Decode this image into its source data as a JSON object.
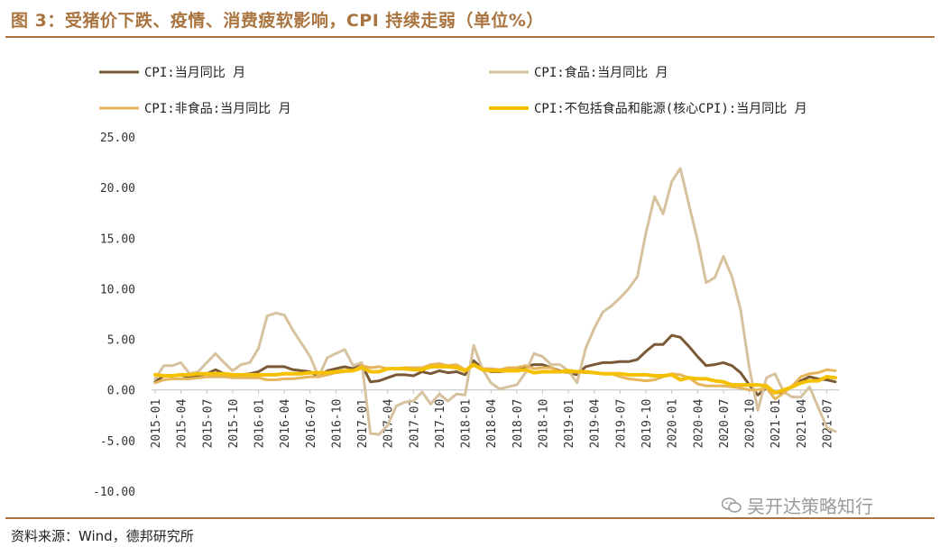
{
  "title": "图 3：受猪价下跌、疫情、消费疲软影响，CPI 持续走弱（单位%）",
  "source": "资料来源：Wind，德邦研究所",
  "watermark": {
    "text": "吴开达策略知行",
    "icon": "wechat-icon"
  },
  "colors": {
    "cpi": "#7a5a36",
    "food": "#d7c29e",
    "nonfood": "#e6b55a",
    "core": "#f5c000",
    "accent": "#a9743f"
  },
  "chart_data": {
    "type": "line",
    "title": "图 3：受猪价下跌、疫情、消费疲软影响，CPI 持续走弱（单位%）",
    "ylim": [
      -10,
      25
    ],
    "y_ticks": [
      "25.00",
      "20.00",
      "15.00",
      "10.00",
      "5.00",
      "0.00",
      "-5.00",
      "-10.00"
    ],
    "x_tick_labels": [
      "2015-01",
      "2015-04",
      "2015-07",
      "2015-10",
      "2016-01",
      "2016-04",
      "2016-07",
      "2016-10",
      "2017-01",
      "2017-04",
      "2017-07",
      "2017-10",
      "2018-01",
      "2018-04",
      "2018-07",
      "2018-10",
      "2019-01",
      "2019-04",
      "2019-07",
      "2019-10",
      "2020-01",
      "2020-04",
      "2020-07",
      "2020-10",
      "2021-01",
      "2021-04",
      "2021-07"
    ],
    "legend_position": "top",
    "grid": false,
    "series": [
      {
        "name": "CPI:当月同比 月",
        "color": "#7a5a36",
        "x": [
          "2015-01",
          "2015-02",
          "2015-03",
          "2015-04",
          "2015-05",
          "2015-06",
          "2015-07",
          "2015-08",
          "2015-09",
          "2015-10",
          "2015-11",
          "2015-12",
          "2016-01",
          "2016-02",
          "2016-03",
          "2016-04",
          "2016-05",
          "2016-06",
          "2016-07",
          "2016-08",
          "2016-09",
          "2016-10",
          "2016-11",
          "2016-12",
          "2017-01",
          "2017-02",
          "2017-03",
          "2017-04",
          "2017-05",
          "2017-06",
          "2017-07",
          "2017-08",
          "2017-09",
          "2017-10",
          "2017-11",
          "2017-12",
          "2018-01",
          "2018-02",
          "2018-03",
          "2018-04",
          "2018-05",
          "2018-06",
          "2018-07",
          "2018-08",
          "2018-09",
          "2018-10",
          "2018-11",
          "2018-12",
          "2019-01",
          "2019-02",
          "2019-03",
          "2019-04",
          "2019-05",
          "2019-06",
          "2019-07",
          "2019-08",
          "2019-09",
          "2019-10",
          "2019-11",
          "2019-12",
          "2020-01",
          "2020-02",
          "2020-03",
          "2020-04",
          "2020-05",
          "2020-06",
          "2020-07",
          "2020-08",
          "2020-09",
          "2020-10",
          "2020-11",
          "2020-12",
          "2021-01",
          "2021-02",
          "2021-03",
          "2021-04",
          "2021-05",
          "2021-06",
          "2021-07",
          "2021-08"
        ],
        "values": [
          0.8,
          1.4,
          1.4,
          1.5,
          1.2,
          1.4,
          1.6,
          2.0,
          1.6,
          1.3,
          1.5,
          1.6,
          1.8,
          2.3,
          2.3,
          2.3,
          2.0,
          1.9,
          1.8,
          1.3,
          1.9,
          2.1,
          2.3,
          2.1,
          2.5,
          0.8,
          0.9,
          1.2,
          1.5,
          1.5,
          1.4,
          1.8,
          1.6,
          1.9,
          1.7,
          1.8,
          1.5,
          2.9,
          2.1,
          1.8,
          1.8,
          1.9,
          2.1,
          2.3,
          2.5,
          2.5,
          2.2,
          1.9,
          1.7,
          1.5,
          2.3,
          2.5,
          2.7,
          2.7,
          2.8,
          2.8,
          3.0,
          3.8,
          4.5,
          4.5,
          5.4,
          5.2,
          4.3,
          3.3,
          2.4,
          2.5,
          2.7,
          2.4,
          1.7,
          0.5,
          -0.5,
          0.2,
          -0.3,
          -0.2,
          0.4,
          0.9,
          1.3,
          1.1,
          1.0,
          0.8
        ]
      },
      {
        "name": "CPI:食品:当月同比 月",
        "color": "#d7c29e",
        "x": [
          "2015-01",
          "2015-02",
          "2015-03",
          "2015-04",
          "2015-05",
          "2015-06",
          "2015-07",
          "2015-08",
          "2015-09",
          "2015-10",
          "2015-11",
          "2015-12",
          "2016-01",
          "2016-02",
          "2016-03",
          "2016-04",
          "2016-05",
          "2016-06",
          "2016-07",
          "2016-08",
          "2016-09",
          "2016-10",
          "2016-11",
          "2016-12",
          "2017-01",
          "2017-02",
          "2017-03",
          "2017-04",
          "2017-05",
          "2017-06",
          "2017-07",
          "2017-08",
          "2017-09",
          "2017-10",
          "2017-11",
          "2017-12",
          "2018-01",
          "2018-02",
          "2018-03",
          "2018-04",
          "2018-05",
          "2018-06",
          "2018-07",
          "2018-08",
          "2018-09",
          "2018-10",
          "2018-11",
          "2018-12",
          "2019-01",
          "2019-02",
          "2019-03",
          "2019-04",
          "2019-05",
          "2019-06",
          "2019-07",
          "2019-08",
          "2019-09",
          "2019-10",
          "2019-11",
          "2019-12",
          "2020-01",
          "2020-02",
          "2020-03",
          "2020-04",
          "2020-05",
          "2020-06",
          "2020-07",
          "2020-08",
          "2020-09",
          "2020-10",
          "2020-11",
          "2020-12",
          "2021-01",
          "2021-02",
          "2021-03",
          "2021-04",
          "2021-05",
          "2021-06",
          "2021-07",
          "2021-08"
        ],
        "values": [
          1.1,
          2.4,
          2.4,
          2.7,
          1.6,
          1.8,
          2.7,
          3.6,
          2.7,
          1.9,
          2.5,
          2.7,
          4.1,
          7.3,
          7.6,
          7.4,
          5.9,
          4.6,
          3.3,
          1.3,
          3.2,
          3.6,
          4.0,
          2.4,
          2.7,
          -4.3,
          -4.4,
          -3.5,
          -1.6,
          -1.2,
          -1.1,
          -0.2,
          -1.4,
          -0.4,
          -1.1,
          -0.4,
          -0.5,
          4.4,
          2.1,
          0.7,
          0.1,
          0.3,
          0.5,
          1.7,
          3.6,
          3.3,
          2.5,
          2.5,
          1.9,
          0.7,
          4.1,
          6.1,
          7.7,
          8.3,
          9.1,
          10.0,
          11.2,
          15.5,
          19.1,
          17.4,
          20.6,
          21.9,
          18.3,
          14.8,
          10.6,
          11.1,
          13.2,
          11.2,
          7.9,
          2.2,
          -2.0,
          1.2,
          1.6,
          -0.2,
          -0.7,
          -0.7,
          0.3,
          -1.7,
          -3.7,
          -4.1
        ]
      },
      {
        "name": "CPI:非食品:当月同比 月",
        "color": "#e6b55a",
        "x": [
          "2015-01",
          "2015-02",
          "2015-03",
          "2015-04",
          "2015-05",
          "2015-06",
          "2015-07",
          "2015-08",
          "2015-09",
          "2015-10",
          "2015-11",
          "2015-12",
          "2016-01",
          "2016-02",
          "2016-03",
          "2016-04",
          "2016-05",
          "2016-06",
          "2016-07",
          "2016-08",
          "2016-09",
          "2016-10",
          "2016-11",
          "2016-12",
          "2017-01",
          "2017-02",
          "2017-03",
          "2017-04",
          "2017-05",
          "2017-06",
          "2017-07",
          "2017-08",
          "2017-09",
          "2017-10",
          "2017-11",
          "2017-12",
          "2018-01",
          "2018-02",
          "2018-03",
          "2018-04",
          "2018-05",
          "2018-06",
          "2018-07",
          "2018-08",
          "2018-09",
          "2018-10",
          "2018-11",
          "2018-12",
          "2019-01",
          "2019-02",
          "2019-03",
          "2019-04",
          "2019-05",
          "2019-06",
          "2019-07",
          "2019-08",
          "2019-09",
          "2019-10",
          "2019-11",
          "2019-12",
          "2020-01",
          "2020-02",
          "2020-03",
          "2020-04",
          "2020-05",
          "2020-06",
          "2020-07",
          "2020-08",
          "2020-09",
          "2020-10",
          "2020-11",
          "2020-12",
          "2021-01",
          "2021-02",
          "2021-03",
          "2021-04",
          "2021-05",
          "2021-06",
          "2021-07",
          "2021-08"
        ],
        "values": [
          0.7,
          1.0,
          1.1,
          1.1,
          1.1,
          1.2,
          1.3,
          1.3,
          1.3,
          1.2,
          1.2,
          1.2,
          1.2,
          1.0,
          1.0,
          1.1,
          1.1,
          1.2,
          1.3,
          1.3,
          1.5,
          1.7,
          1.8,
          1.9,
          2.4,
          2.2,
          2.3,
          2.1,
          2.1,
          2.2,
          2.2,
          2.2,
          2.5,
          2.6,
          2.4,
          2.5,
          2.0,
          2.5,
          2.1,
          2.1,
          2.0,
          2.2,
          2.2,
          2.4,
          2.1,
          2.2,
          2.2,
          1.8,
          1.7,
          1.8,
          1.7,
          1.7,
          1.6,
          1.6,
          1.3,
          1.1,
          1.0,
          0.9,
          1.0,
          1.3,
          1.6,
          1.5,
          1.2,
          0.6,
          0.4,
          0.4,
          0.4,
          0.3,
          0.2,
          0.0,
          0.0,
          0.2,
          -0.9,
          -0.3,
          0.4,
          1.3,
          1.6,
          1.7,
          2.0,
          1.9
        ]
      },
      {
        "name": "CPI:不包括食品和能源(核心CPI):当月同比 月",
        "color": "#f5c000",
        "x": [
          "2015-01",
          "2015-02",
          "2015-03",
          "2015-04",
          "2015-05",
          "2015-06",
          "2015-07",
          "2015-08",
          "2015-09",
          "2015-10",
          "2015-11",
          "2015-12",
          "2016-01",
          "2016-02",
          "2016-03",
          "2016-04",
          "2016-05",
          "2016-06",
          "2016-07",
          "2016-08",
          "2016-09",
          "2016-10",
          "2016-11",
          "2016-12",
          "2017-01",
          "2017-02",
          "2017-03",
          "2017-04",
          "2017-05",
          "2017-06",
          "2017-07",
          "2017-08",
          "2017-09",
          "2017-10",
          "2017-11",
          "2017-12",
          "2018-01",
          "2018-02",
          "2018-03",
          "2018-04",
          "2018-05",
          "2018-06",
          "2018-07",
          "2018-08",
          "2018-09",
          "2018-10",
          "2018-11",
          "2018-12",
          "2019-01",
          "2019-02",
          "2019-03",
          "2019-04",
          "2019-05",
          "2019-06",
          "2019-07",
          "2019-08",
          "2019-09",
          "2019-10",
          "2019-11",
          "2019-12",
          "2020-01",
          "2020-02",
          "2020-03",
          "2020-04",
          "2020-05",
          "2020-06",
          "2020-07",
          "2020-08",
          "2020-09",
          "2020-10",
          "2020-11",
          "2020-12",
          "2021-01",
          "2021-02",
          "2021-03",
          "2021-04",
          "2021-05",
          "2021-06",
          "2021-07",
          "2021-08"
        ],
        "values": [
          1.5,
          1.4,
          1.4,
          1.5,
          1.5,
          1.6,
          1.6,
          1.6,
          1.6,
          1.5,
          1.5,
          1.5,
          1.5,
          1.5,
          1.5,
          1.6,
          1.6,
          1.6,
          1.7,
          1.7,
          1.7,
          1.8,
          1.9,
          1.9,
          2.2,
          1.8,
          1.8,
          2.1,
          2.1,
          2.1,
          2.0,
          2.0,
          2.3,
          2.3,
          2.3,
          2.2,
          1.9,
          2.5,
          2.0,
          1.9,
          1.9,
          1.9,
          1.9,
          2.0,
          1.7,
          1.8,
          1.8,
          1.8,
          1.9,
          1.8,
          1.8,
          1.7,
          1.6,
          1.6,
          1.6,
          1.5,
          1.5,
          1.5,
          1.4,
          1.4,
          1.5,
          1.0,
          1.2,
          1.1,
          1.1,
          0.9,
          0.8,
          0.5,
          0.5,
          0.5,
          0.5,
          0.4,
          -0.3,
          0.0,
          0.3,
          0.7,
          0.9,
          0.9,
          1.3,
          1.2
        ]
      }
    ]
  }
}
